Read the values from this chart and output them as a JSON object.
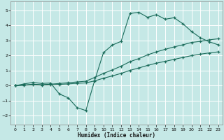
{
  "background_color": "#c5e8e6",
  "grid_color": "#b0d8d4",
  "line_color": "#1a6b5a",
  "x_label": "Humidex (Indice chaleur)",
  "xlim": [
    -0.5,
    23.5
  ],
  "ylim": [
    -2.6,
    5.6
  ],
  "yticks": [
    -2,
    -1,
    0,
    1,
    2,
    3,
    4,
    5
  ],
  "xticks": [
    0,
    1,
    2,
    3,
    4,
    5,
    6,
    7,
    8,
    9,
    10,
    11,
    12,
    13,
    14,
    15,
    16,
    17,
    18,
    19,
    20,
    21,
    22,
    23
  ],
  "curve1_x": [
    0,
    1,
    2,
    3,
    4,
    5,
    6,
    7,
    8,
    9,
    10,
    11,
    12,
    13,
    14,
    15,
    16,
    17,
    18,
    19,
    20,
    21,
    22,
    23
  ],
  "curve1_y": [
    0.0,
    0.12,
    0.22,
    0.15,
    0.18,
    -0.55,
    -0.8,
    -1.45,
    -1.65,
    0.35,
    2.2,
    2.7,
    2.95,
    4.8,
    4.88,
    4.55,
    4.72,
    4.42,
    4.52,
    4.12,
    3.6,
    3.18,
    2.92,
    2.72
  ],
  "curve2_x": [
    0,
    1,
    2,
    3,
    4,
    5,
    6,
    7,
    8,
    9,
    10,
    11,
    12,
    13,
    14,
    15,
    16,
    17,
    18,
    19,
    20,
    21,
    22,
    23
  ],
  "curve2_y": [
    0.0,
    0.05,
    0.1,
    0.07,
    0.1,
    0.15,
    0.2,
    0.25,
    0.3,
    0.55,
    0.82,
    1.05,
    1.3,
    1.6,
    1.8,
    2.05,
    2.25,
    2.42,
    2.58,
    2.72,
    2.88,
    2.95,
    3.05,
    3.12
  ],
  "curve3_x": [
    0,
    1,
    2,
    3,
    4,
    5,
    6,
    7,
    8,
    9,
    10,
    11,
    12,
    13,
    14,
    15,
    16,
    17,
    18,
    19,
    20,
    21,
    22,
    23
  ],
  "curve3_y": [
    0.0,
    0.03,
    0.06,
    0.04,
    0.06,
    0.09,
    0.12,
    0.16,
    0.19,
    0.32,
    0.5,
    0.65,
    0.82,
    1.02,
    1.18,
    1.35,
    1.5,
    1.62,
    1.75,
    1.88,
    2.0,
    2.1,
    2.18,
    2.25
  ]
}
